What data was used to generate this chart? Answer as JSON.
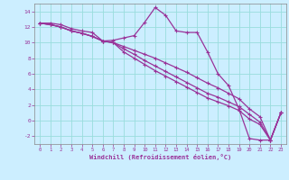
{
  "xlabel": "Windchill (Refroidissement éolien,°C)",
  "bg_color": "#cceeff",
  "grid_color": "#99dddd",
  "line_color": "#993399",
  "xlim": [
    -0.5,
    23.5
  ],
  "ylim": [
    -3,
    15
  ],
  "xticks": [
    0,
    1,
    2,
    3,
    4,
    5,
    6,
    7,
    8,
    9,
    10,
    11,
    12,
    13,
    14,
    15,
    16,
    17,
    18,
    19,
    20,
    21,
    22,
    23
  ],
  "yticks": [
    -2,
    0,
    2,
    4,
    6,
    8,
    10,
    12,
    14
  ],
  "line1_x": [
    0,
    1,
    2,
    3,
    4,
    5,
    6,
    7,
    8,
    9,
    10,
    11,
    12,
    13,
    14,
    15,
    16,
    17,
    18,
    19,
    20,
    21,
    22,
    23
  ],
  "line1_y": [
    12.5,
    12.5,
    12.3,
    11.8,
    11.5,
    11.3,
    10.2,
    10.3,
    10.6,
    10.9,
    12.6,
    14.5,
    13.5,
    11.5,
    11.3,
    11.3,
    8.8,
    6.0,
    4.5,
    1.5,
    -2.3,
    -2.5,
    -2.5,
    1.0
  ],
  "line2_x": [
    0,
    1,
    2,
    3,
    4,
    5,
    6,
    7,
    8,
    9,
    10,
    11,
    12,
    13,
    14,
    15,
    16,
    17,
    18,
    19,
    20,
    21,
    22,
    23
  ],
  "line2_y": [
    12.5,
    12.3,
    12.0,
    11.5,
    11.2,
    10.8,
    10.2,
    10.0,
    9.5,
    9.0,
    8.5,
    8.0,
    7.4,
    6.8,
    6.2,
    5.5,
    4.8,
    4.2,
    3.5,
    2.8,
    1.5,
    0.5,
    -2.5,
    1.0
  ],
  "line3_x": [
    0,
    1,
    2,
    3,
    4,
    5,
    6,
    7,
    8,
    9,
    10,
    11,
    12,
    13,
    14,
    15,
    16,
    17,
    18,
    19,
    20,
    21,
    22,
    23
  ],
  "line3_y": [
    12.5,
    12.3,
    12.0,
    11.5,
    11.2,
    10.8,
    10.2,
    10.0,
    9.2,
    8.5,
    7.7,
    7.0,
    6.3,
    5.6,
    4.9,
    4.2,
    3.5,
    3.0,
    2.4,
    1.8,
    0.8,
    -0.2,
    -2.5,
    1.0
  ],
  "line4_x": [
    0,
    1,
    2,
    3,
    4,
    5,
    6,
    7,
    8,
    9,
    10,
    11,
    12,
    13,
    14,
    15,
    16,
    17,
    18,
    19,
    20,
    21,
    22,
    23
  ],
  "line4_y": [
    12.5,
    12.3,
    12.0,
    11.5,
    11.2,
    10.8,
    10.2,
    10.0,
    8.8,
    8.0,
    7.2,
    6.4,
    5.7,
    5.0,
    4.3,
    3.6,
    2.9,
    2.4,
    1.9,
    1.3,
    0.2,
    -0.5,
    -2.5,
    1.0
  ]
}
